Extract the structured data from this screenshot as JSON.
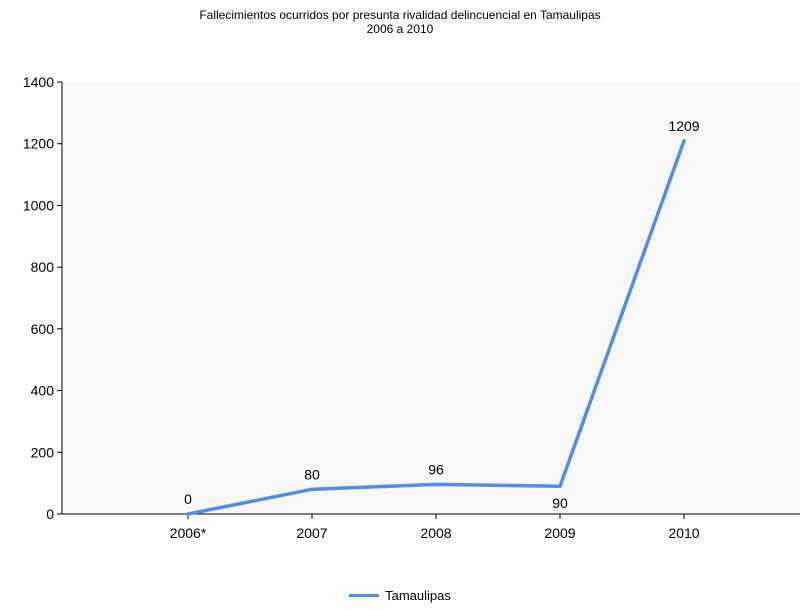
{
  "chart_data": {
    "type": "line",
    "title": "Fallecimientos ocurridos por presunta rivalidad delincuencial en Tamaulipas",
    "subtitle": "2006 a 2010",
    "xlabel": "",
    "ylabel": "",
    "categories": [
      "2006*",
      "2007",
      "2008",
      "2009",
      "2010"
    ],
    "series": [
      {
        "name": "Tamaulipas",
        "values": [
          0,
          80,
          96,
          90,
          1209
        ],
        "color": "#4f8fe6",
        "data_labels": [
          "0",
          "80",
          "96",
          "90",
          "1209"
        ]
      }
    ],
    "ylim": [
      0,
      1400
    ],
    "yticks": [
      0,
      200,
      400,
      600,
      800,
      1000,
      1200,
      1400
    ],
    "ytick_labels": [
      "0",
      "200",
      "400",
      "600",
      "800",
      "1000",
      "1200",
      "1400"
    ],
    "grid": false,
    "plot_background": "#f8f8f8",
    "legend_position": "bottom-center"
  }
}
